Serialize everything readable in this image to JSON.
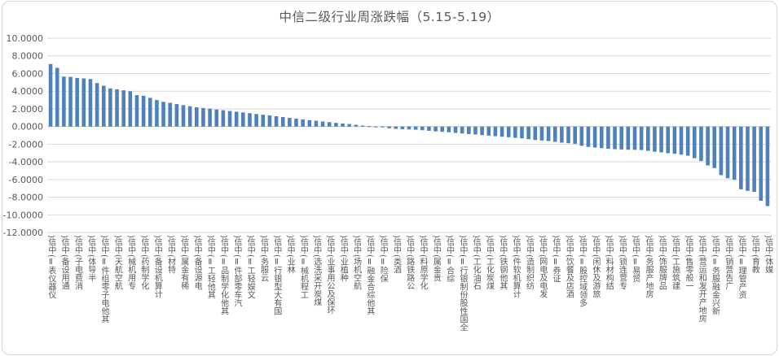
{
  "chart_data": {
    "type": "bar",
    "title": "中信二级行业周涨跌幅（5.15-5.19）",
    "xlabel": "",
    "ylabel": "",
    "ylim": [
      -12,
      10
    ],
    "y_tick_interval": 2,
    "y_tick_decimals": 4,
    "grid": true,
    "legend": false,
    "bar_color": "#4f81bd",
    "x_label_rotation": "vertical",
    "x_labels_shown_every": 2,
    "categories_labeled": [
      "仪器仪表Ⅱ(中信)",
      "通用设备(中信)",
      "消费电子(中信)",
      "半导体(中信)",
      "其他电子零组件Ⅱ(中信)",
      "航空航天(中信)",
      "专用机械(中信)",
      "化学制药(中信)",
      "计算机设备(中信)",
      "特材(中信)",
      "稀有金属(中信)",
      "电源设备(中信)",
      "其他轻工Ⅱ(中信)",
      "其他化学制品Ⅱ(中信)",
      "汽车零部件Ⅱ(中信)",
      "文娱轻工Ⅱ(中信)",
      "云服务(中信)",
      "国有大型银行Ⅱ(中信)",
      "林业(中信)",
      "工程机械Ⅱ(中信)",
      "煤炭开采洗选(中信)",
      "环保及公用事业(中信)",
      "种植业(中信)",
      "航空机场(中信)",
      "其他综合金融Ⅱ(中信)",
      "保险Ⅱ(中信)",
      "酒类(中信)",
      "公路铁路(中信)",
      "化学原料(中信)",
      "贵金属(中信)",
      "综合Ⅱ(中信)",
      "全国性股份制银行Ⅱ(中信)",
      "石油化工(中信)",
      "煤炭化工(中信)",
      "其他钢铁(中信)",
      "计算机软件(中信)",
      "纺织制造(中信)",
      "发电及电网(中信)",
      "证券Ⅱ(中信)",
      "酒店及餐饮(中信)",
      "多领域控股Ⅱ(中信)",
      "旅游及休闲(中信)",
      "结构材料(中信)",
      "专营连锁(中信)",
      "贸易Ⅱ(中信)",
      "房地产服务(中信)",
      "品牌服饰(中信)",
      "建筑施工(中信)",
      "一般零售(中信)",
      "房地产开发和运营(中信)",
      "新兴金融服务Ⅱ(中信)",
      "广告营销(中信)",
      "资产管理Ⅱ(中信)",
      "教育(中信)",
      "媒体(中信)"
    ],
    "values": [
      7.08,
      6.65,
      5.65,
      5.62,
      5.5,
      5.45,
      5.38,
      4.92,
      4.62,
      4.32,
      4.22,
      4.1,
      4.0,
      3.55,
      3.48,
      3.25,
      3.0,
      2.8,
      2.68,
      2.55,
      2.42,
      2.3,
      2.18,
      2.1,
      2.02,
      1.93,
      1.85,
      1.76,
      1.68,
      1.6,
      1.51,
      1.42,
      1.34,
      1.26,
      1.17,
      1.08,
      0.98,
      0.9,
      0.81,
      0.72,
      0.66,
      0.57,
      0.5,
      0.42,
      0.35,
      0.28,
      0.2,
      0.12,
      0.05,
      -0.02,
      -0.1,
      -0.2,
      -0.26,
      -0.3,
      -0.33,
      -0.36,
      -0.42,
      -0.48,
      -0.55,
      -0.6,
      -0.65,
      -0.72,
      -0.78,
      -0.85,
      -0.9,
      -0.97,
      -1.03,
      -1.09,
      -1.15,
      -1.21,
      -1.28,
      -1.34,
      -1.43,
      -1.52,
      -1.58,
      -1.64,
      -1.73,
      -1.82,
      -1.88,
      -1.95,
      -2.17,
      -2.3,
      -2.38,
      -2.45,
      -2.51,
      -2.56,
      -2.6,
      -2.62,
      -2.63,
      -2.66,
      -2.75,
      -2.85,
      -2.92,
      -3.02,
      -3.08,
      -3.18,
      -3.3,
      -3.58,
      -3.9,
      -4.4,
      -4.7,
      -5.5,
      -5.85,
      -6.02,
      -7.1,
      -7.28,
      -7.4,
      -8.4,
      -9.0
    ]
  },
  "colors": {
    "bar": "#4f81bd",
    "gridline": "#d9d9d9",
    "text": "#595959",
    "frame_border": "#d7d7d7",
    "background": "#ffffff"
  }
}
